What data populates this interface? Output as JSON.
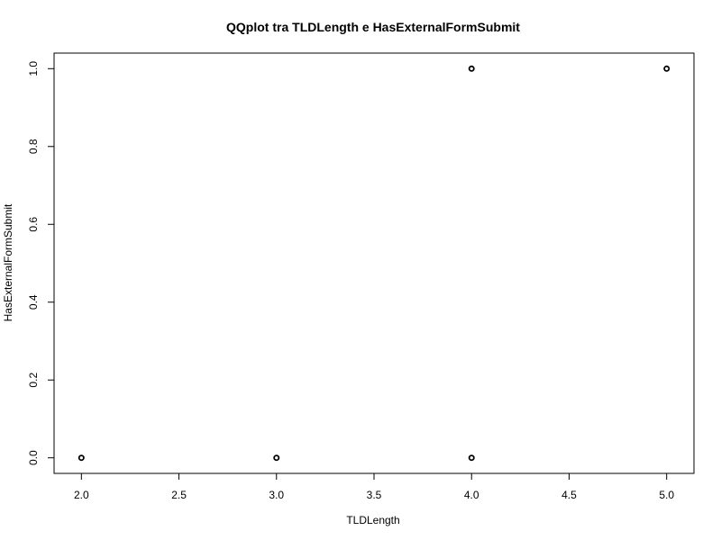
{
  "chart_data": {
    "type": "scatter",
    "title": "QQplot tra TLDLength e HasExternalFormSubmit",
    "xlabel": "TLDLength",
    "ylabel": "HasExternalFormSubmit",
    "xlim": [
      1.86,
      5.14
    ],
    "ylim": [
      -0.04,
      1.04
    ],
    "xticks": [
      2.0,
      2.5,
      3.0,
      3.5,
      4.0,
      4.5,
      5.0
    ],
    "xtick_labels": [
      "2.0",
      "2.5",
      "3.0",
      "3.5",
      "4.0",
      "4.5",
      "5.0"
    ],
    "yticks": [
      0.0,
      0.2,
      0.4,
      0.6,
      0.8,
      1.0
    ],
    "ytick_labels": [
      "0.0",
      "0.2",
      "0.4",
      "0.6",
      "0.8",
      "1.0"
    ],
    "grid": false,
    "marker": "open-circle",
    "color": "#000000",
    "points": [
      {
        "x": 2.0,
        "y": 0.0
      },
      {
        "x": 3.0,
        "y": 0.0
      },
      {
        "x": 4.0,
        "y": 0.0
      },
      {
        "x": 4.0,
        "y": 1.0
      },
      {
        "x": 5.0,
        "y": 1.0
      }
    ]
  }
}
